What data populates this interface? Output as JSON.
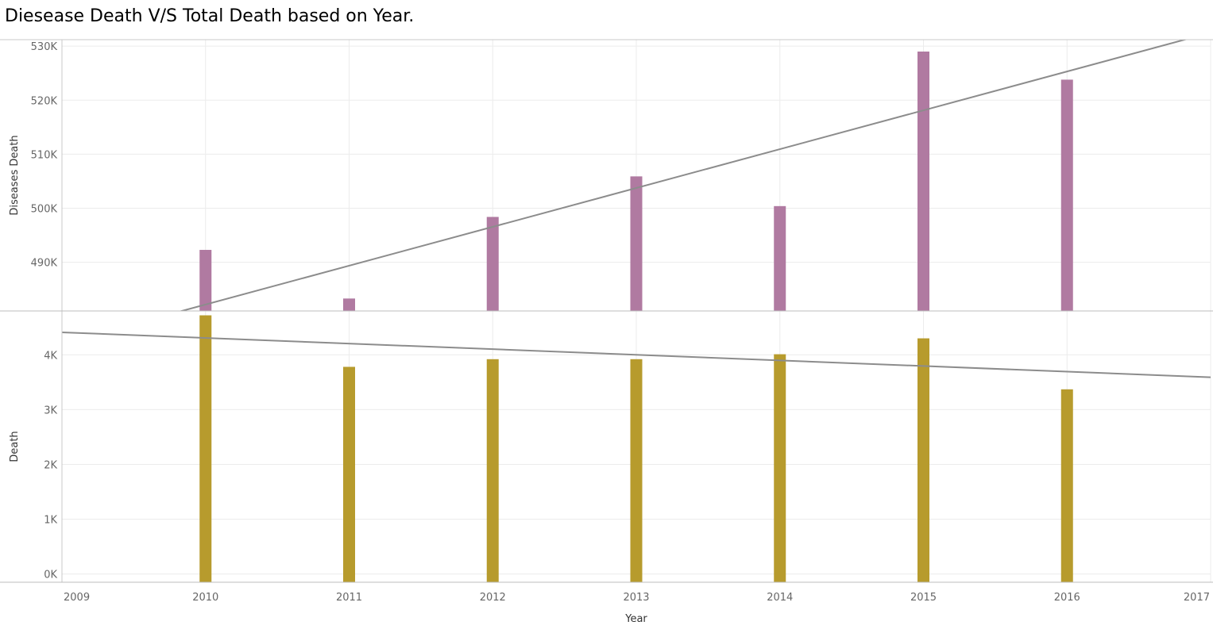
{
  "chart_data": {
    "type": "bar",
    "title": "Diesease Death V/S Total Death based on Year.",
    "xlabel": "Year",
    "x_ticks": [
      "2009",
      "2010",
      "2011",
      "2012",
      "2013",
      "2014",
      "2015",
      "2016",
      "2017"
    ],
    "xlim": [
      2009,
      2017
    ],
    "categories": [
      "2010",
      "2011",
      "2012",
      "2013",
      "2014",
      "2015",
      "2016"
    ],
    "grid": true,
    "panels": [
      {
        "name": "diseases",
        "ylabel": "Diseases Death",
        "ylim": [
          481000,
          531200
        ],
        "y_ticks": [
          {
            "value": 490000,
            "label": "490K"
          },
          {
            "value": 500000,
            "label": "500K"
          },
          {
            "value": 510000,
            "label": "510K"
          },
          {
            "value": 520000,
            "label": "520K"
          },
          {
            "value": 530000,
            "label": "530K"
          }
        ],
        "color": "#b07aa1",
        "values": [
          492300,
          483300,
          498400,
          505900,
          500400,
          529000,
          523800
        ],
        "trend": [
          475000,
          532500
        ]
      },
      {
        "name": "death",
        "ylabel": "Death",
        "ylim": [
          -150,
          4800
        ],
        "y_ticks": [
          {
            "value": 0,
            "label": "0K"
          },
          {
            "value": 1000,
            "label": "1K"
          },
          {
            "value": 2000,
            "label": "2K"
          },
          {
            "value": 3000,
            "label": "3K"
          },
          {
            "value": 4000,
            "label": "4K"
          }
        ],
        "color": "#b79b2d",
        "values": [
          4720,
          3780,
          3920,
          3920,
          4010,
          4300,
          3370
        ],
        "trend": [
          4410,
          3590
        ]
      }
    ]
  }
}
